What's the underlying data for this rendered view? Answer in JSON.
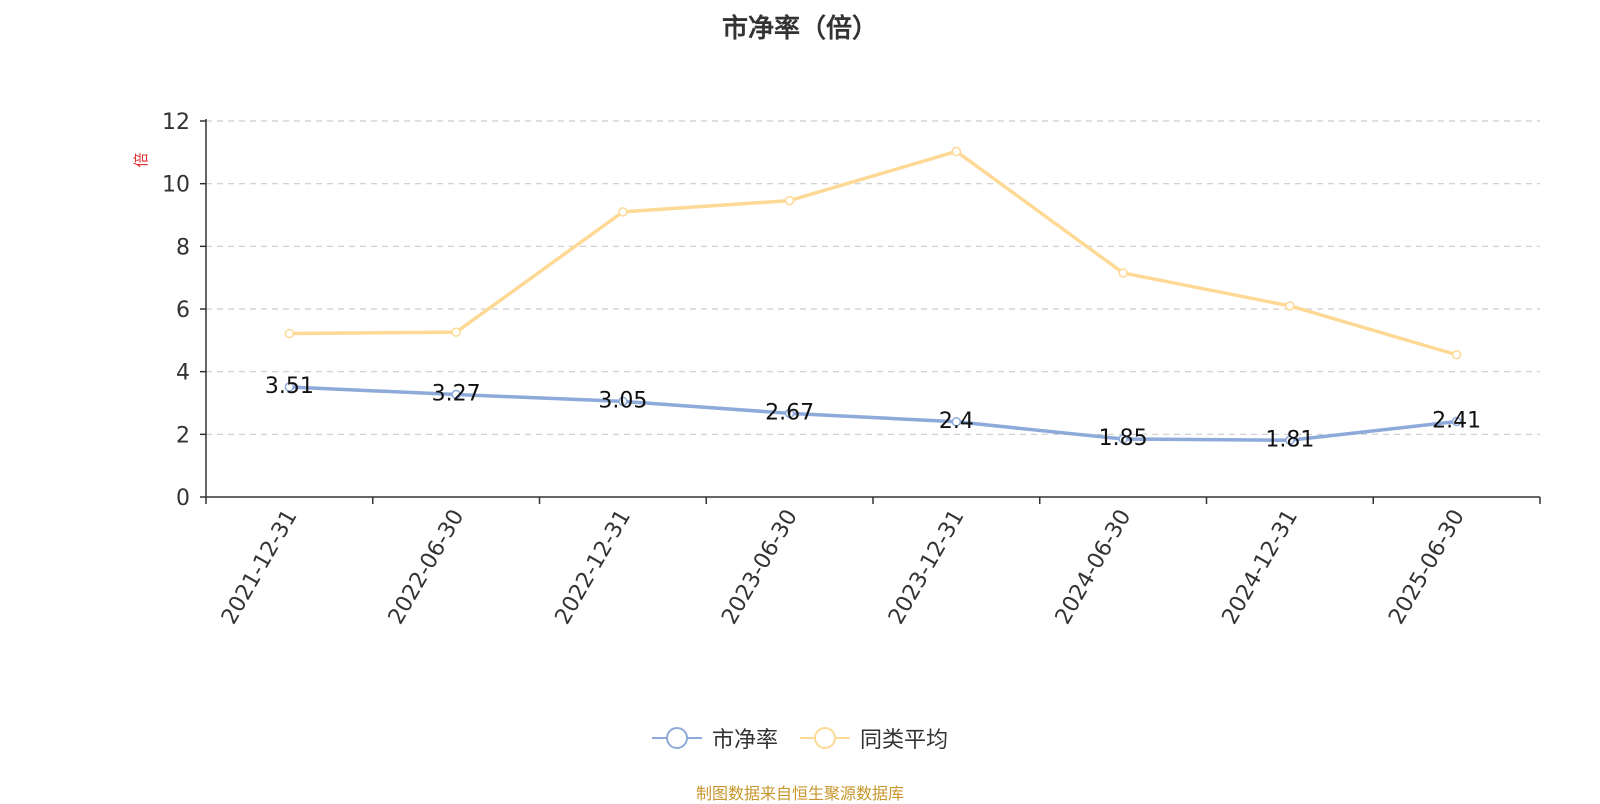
{
  "chart_data": {
    "type": "line",
    "title": "市净率（倍）",
    "ylabel": "倍",
    "ylim": [
      0,
      12
    ],
    "yticks": [
      "0",
      "2",
      "4",
      "6",
      "8",
      "10",
      "12"
    ],
    "grid": true,
    "legend_position": "bottom",
    "categories": [
      "2021-12-31",
      "2022-06-30",
      "2022-12-31",
      "2023-06-30",
      "2023-12-31",
      "2024-06-30",
      "2024-12-31",
      "2025-06-30"
    ],
    "series": [
      {
        "name": "市净率",
        "color": "#8eaadb",
        "values": [
          3.51,
          3.27,
          3.05,
          2.67,
          2.4,
          1.85,
          1.81,
          2.41
        ],
        "labels": [
          "3.51",
          "3.27",
          "3.05",
          "2.67",
          "2.4",
          "1.85",
          "1.81",
          "2.41"
        ]
      },
      {
        "name": "同类平均",
        "color": "#fdd995",
        "values": [
          5.22,
          5.26,
          9.1,
          9.46,
          11.03,
          7.15,
          6.1,
          4.54
        ]
      }
    ]
  },
  "source_note": "制图数据来自恒生聚源数据库"
}
